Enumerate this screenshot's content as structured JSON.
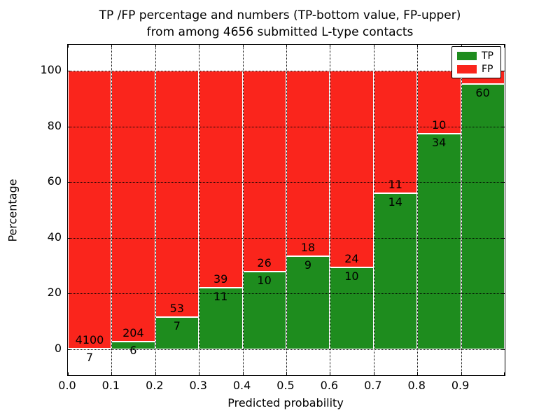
{
  "title": {
    "line1": "TP /FP percentage and numbers (TP-bottom value, FP-upper)",
    "line2": "from among 4656 submitted L-type contacts"
  },
  "axes": {
    "xlabel": "Predicted probability",
    "ylabel": "Percentage",
    "x_ticks": [
      "0.0",
      "0.1",
      "0.2",
      "0.3",
      "0.4",
      "0.5",
      "0.6",
      "0.7",
      "0.8",
      "0.9"
    ],
    "y_ticks": [
      "0",
      "20",
      "40",
      "60",
      "80",
      "100"
    ],
    "y_tick_values": [
      0,
      20,
      40,
      60,
      80,
      100
    ]
  },
  "legend": {
    "items": [
      {
        "label": "TP",
        "color": "#1e8c1e"
      },
      {
        "label": "FP",
        "color": "#fa251c"
      }
    ]
  },
  "colors": {
    "tp": "#1e8c1e",
    "fp": "#fa251c",
    "bar_edge": "#ffffff",
    "grid": "#000000",
    "background": "#ffffff"
  },
  "chart_data": {
    "type": "bar",
    "stacked": true,
    "normalized": "percent",
    "title": "TP /FP percentage and numbers (TP-bottom value, FP-upper) from among 4656 submitted L-type contacts",
    "xlabel": "Predicted probability",
    "ylabel": "Percentage",
    "total_submitted": 4656,
    "x_bins": [
      "0.0-0.1",
      "0.1-0.2",
      "0.2-0.3",
      "0.3-0.4",
      "0.4-0.5",
      "0.5-0.6",
      "0.6-0.7",
      "0.7-0.8",
      "0.8-0.9",
      "0.9-1.0"
    ],
    "ylim": [
      0,
      100
    ],
    "grid": true,
    "legend_position": "upper right",
    "series": [
      {
        "name": "TP",
        "color": "#1e8c1e",
        "counts": [
          7,
          6,
          7,
          11,
          10,
          9,
          10,
          14,
          34,
          60
        ],
        "percent": [
          0.17,
          2.86,
          11.67,
          22.0,
          27.78,
          33.33,
          29.41,
          56.0,
          77.27,
          95.24
        ]
      },
      {
        "name": "FP",
        "color": "#fa251c",
        "counts": [
          4100,
          204,
          53,
          39,
          26,
          18,
          24,
          11,
          10,
          null
        ],
        "percent": [
          99.83,
          97.14,
          88.33,
          78.0,
          72.22,
          66.67,
          70.59,
          44.0,
          22.73,
          4.76
        ]
      }
    ]
  }
}
